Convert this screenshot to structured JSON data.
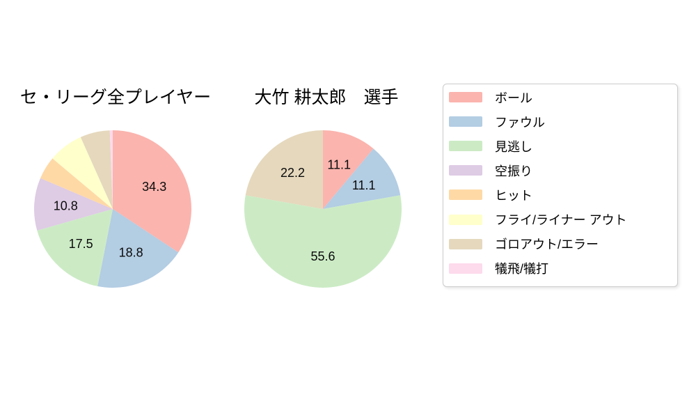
{
  "chart_data": [
    {
      "type": "pie",
      "title": "セ・リーグ全プレイヤー",
      "categories": [
        "ボール",
        "ファウル",
        "見逃し",
        "空振り",
        "ヒット",
        "フライ/ライナー アウト",
        "ゴロアウト/エラー",
        "犠飛/犠打"
      ],
      "values": [
        34.3,
        18.8,
        17.5,
        10.8,
        4.7,
        7.2,
        6.1,
        0.6
      ],
      "value_labels_shown": [
        "34.3",
        "18.8",
        "17.5",
        "10.8",
        "",
        "",
        "",
        ""
      ],
      "colors": [
        "#fbb4ae",
        "#b3cde3",
        "#ccebc5",
        "#decbe4",
        "#fed9a6",
        "#ffffcc",
        "#e5d8bd",
        "#fddaec"
      ],
      "start_angle_deg": 90,
      "direction": "clockwise",
      "label_distance": 0.6
    },
    {
      "type": "pie",
      "title": "大竹 耕太郎　選手",
      "categories": [
        "ボール",
        "ファウル",
        "見逃し",
        "ゴロアウト/エラー"
      ],
      "values": [
        11.1,
        11.1,
        55.6,
        22.2
      ],
      "value_labels_shown": [
        "11.1",
        "11.1",
        "55.6",
        "22.2"
      ],
      "colors": [
        "#fbb4ae",
        "#b3cde3",
        "#ccebc5",
        "#e5d8bd"
      ],
      "start_angle_deg": 90,
      "direction": "clockwise",
      "label_distance": 0.6
    }
  ],
  "legend": {
    "position": "right",
    "items": [
      {
        "label": "ボール",
        "color": "#fbb4ae"
      },
      {
        "label": "ファウル",
        "color": "#b3cde3"
      },
      {
        "label": "見逃し",
        "color": "#ccebc5"
      },
      {
        "label": "空振り",
        "color": "#decbe4"
      },
      {
        "label": "ヒット",
        "color": "#fed9a6"
      },
      {
        "label": "フライ/ライナー アウト",
        "color": "#ffffcc"
      },
      {
        "label": "ゴロアウト/エラー",
        "color": "#e5d8bd"
      },
      {
        "label": "犠飛/犠打",
        "color": "#fddaec"
      }
    ]
  }
}
